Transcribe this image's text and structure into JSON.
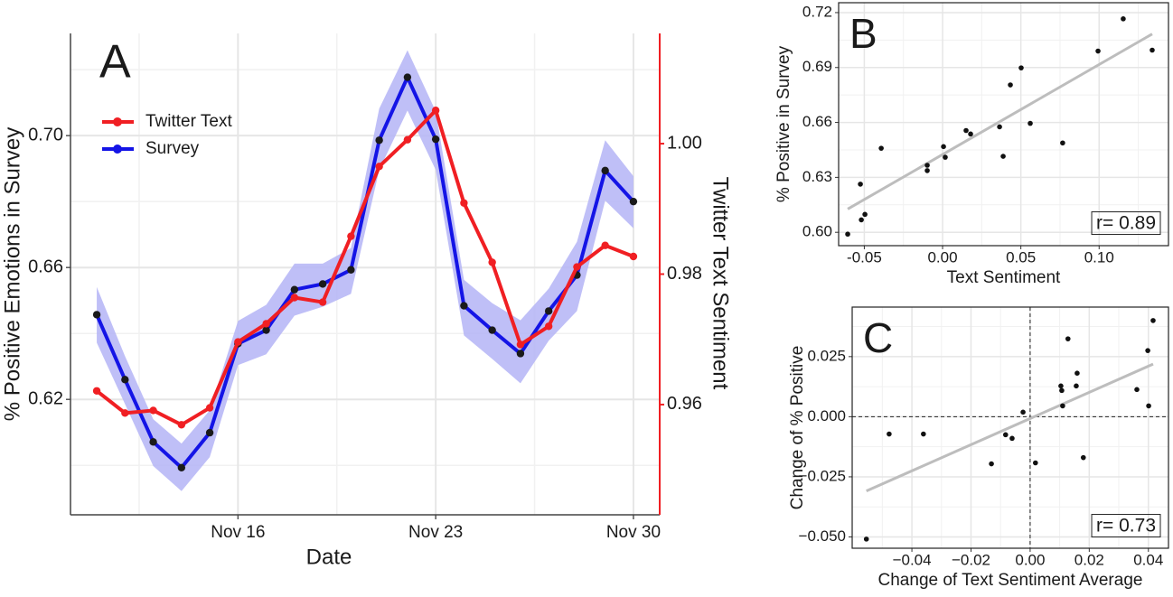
{
  "chart_data": [
    {
      "type": "line",
      "panel_label": "A",
      "x_label": "Date",
      "y_label": "% Positive Emotions in Survey",
      "y2_label": "Twitter Text Sentiment",
      "x": [
        "Nov 11",
        "Nov 12",
        "Nov 13",
        "Nov 14",
        "Nov 15",
        "Nov 16",
        "Nov 17",
        "Nov 18",
        "Nov 19",
        "Nov 20",
        "Nov 21",
        "Nov 22",
        "Nov 23",
        "Nov 24",
        "Nov 25",
        "Nov 26",
        "Nov 27",
        "Nov 28",
        "Nov 29",
        "Nov 30"
      ],
      "xticks": [
        "Nov 16",
        "Nov 23",
        "Nov 30"
      ],
      "ylim": [
        0.585,
        0.731
      ],
      "yticks": [
        0.62,
        0.66,
        {
          "value": 0.7,
          "label": "0.70"
        }
      ],
      "y2lim": [
        0.9431,
        1.0169
      ],
      "y2ticks": [
        0.96,
        0.98,
        {
          "value": 1.0,
          "label": "1.00"
        }
      ],
      "grid": true,
      "legend": "top-left",
      "series": [
        {
          "name": "Twitter Text",
          "color": "#f01f23",
          "marker_color": "#f01f23",
          "axis": "y2",
          "values": [
            0.9621,
            0.9587,
            0.9591,
            0.9569,
            0.9595,
            0.9696,
            0.9724,
            0.9764,
            0.9757,
            0.9858,
            0.9965,
            1.0006,
            1.0051,
            0.9909,
            0.9818,
            0.9692,
            0.972,
            0.9811,
            0.9844,
            0.9827
          ]
        },
        {
          "name": "Survey",
          "color": "#1414e6",
          "marker_color": "#1a1a1a",
          "band_color": "#b4b4f6",
          "values": [
            0.6457,
            0.626,
            0.6071,
            0.5993,
            0.6099,
            0.6369,
            0.641,
            0.6533,
            0.655,
            0.6593,
            0.6986,
            0.7177,
            0.6989,
            0.6484,
            0.641,
            0.6339,
            0.6468,
            0.6577,
            0.6894,
            0.68
          ],
          "lower": [
            0.6372,
            0.6186,
            0.5998,
            0.5922,
            0.6025,
            0.6304,
            0.6337,
            0.6454,
            0.6481,
            0.652,
            0.6896,
            0.7076,
            0.6896,
            0.6394,
            0.6323,
            0.6249,
            0.6378,
            0.6468,
            0.6803,
            0.6719
          ],
          "upper": [
            0.6541,
            0.6331,
            0.614,
            0.6066,
            0.6167,
            0.6438,
            0.6487,
            0.6612,
            0.6612,
            0.6659,
            0.7082,
            0.7259,
            0.7074,
            0.6563,
            0.6492,
            0.644,
            0.6536,
            0.6678,
            0.6986,
            0.6877
          ]
        }
      ]
    },
    {
      "type": "scatter",
      "panel_label": "B",
      "x_label": "Text Sentiment",
      "y_label": "% Positive in Survey",
      "annotation": "r= 0.89",
      "color": "#111111",
      "grid": true,
      "xlim": [
        -0.0664,
        0.1443
      ],
      "xticks": [
        -0.05,
        {
          "value": 0,
          "label": "0.00"
        },
        0.05,
        {
          "value": 0.1,
          "label": "0.10"
        }
      ],
      "ylim": [
        0.5927,
        0.7254
      ],
      "yticks": [
        {
          "value": 0.6,
          "label": "0.60"
        },
        0.63,
        0.66,
        0.69,
        0.72
      ],
      "x": [
        -0.0606,
        -0.0525,
        -0.0519,
        -0.0496,
        -0.0392,
        -0.0098,
        -0.0098,
        0.0006,
        0.0017,
        0.015,
        0.0179,
        0.0364,
        0.0387,
        0.0433,
        0.0502,
        0.056,
        0.0767,
        0.0993,
        0.1154,
        0.1339
      ],
      "y": [
        0.599,
        0.6263,
        0.6068,
        0.6098,
        0.6459,
        0.6337,
        0.6366,
        0.6468,
        0.641,
        0.6556,
        0.6537,
        0.6576,
        0.6415,
        0.6805,
        0.6898,
        0.6595,
        0.6488,
        0.699,
        0.7166,
        0.6995
      ],
      "fit_line": {
        "x": [
          -0.0606,
          0.1339
        ],
        "y": [
          0.6127,
          0.7083
        ],
        "color": "#bdbdbd"
      }
    },
    {
      "type": "scatter",
      "panel_label": "C",
      "x_label": "Change of Text Sentiment Average",
      "y_label": "Change of % Positive",
      "annotation": "r= 0.73",
      "color": "#111111",
      "grid": true,
      "hline": 0,
      "vline": 0,
      "xlim": [
        -0.0602,
        0.0468
      ],
      "xticks": [
        {
          "value": -0.04,
          "label": "−0.04"
        },
        {
          "value": -0.02,
          "label": "−0.02"
        },
        {
          "value": 0,
          "label": "0.00"
        },
        0.02,
        0.04
      ],
      "ylim": [
        -0.0547,
        0.0456
      ],
      "yticks": [
        {
          "value": -0.05,
          "label": "−0.050"
        },
        {
          "value": -0.025,
          "label": "−0.025"
        },
        {
          "value": 0,
          "label": "0.000"
        },
        0.025
      ],
      "x": [
        -0.0554,
        -0.0477,
        -0.0361,
        -0.0131,
        -0.0083,
        -0.0061,
        -0.0024,
        0.0018,
        0.0104,
        0.0107,
        0.011,
        0.0128,
        0.0156,
        0.0159,
        0.018,
        0.0361,
        0.0398,
        0.0401,
        0.0416
      ],
      "y": [
        -0.0509,
        -0.0072,
        -0.0072,
        -0.0196,
        -0.0075,
        -0.009,
        0.0019,
        -0.0192,
        0.0128,
        0.0109,
        0.0045,
        0.0324,
        0.0128,
        0.0181,
        -0.017,
        0.0113,
        0.0275,
        0.0045,
        0.04
      ],
      "fit_line": {
        "x": [
          -0.0554,
          0.0416
        ],
        "y": [
          -0.0309,
          0.0219
        ],
        "color": "#bdbdbd"
      }
    }
  ]
}
